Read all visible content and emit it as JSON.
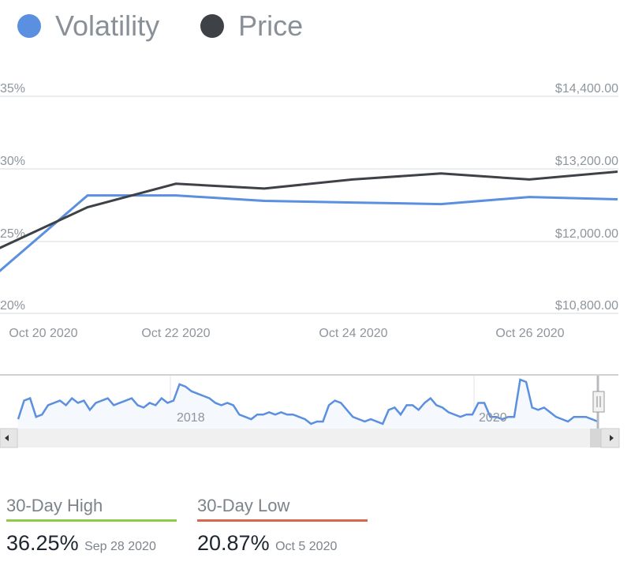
{
  "chart_data": {
    "type": "line",
    "legend": [
      {
        "name": "Volatility",
        "color": "#5b8fe0"
      },
      {
        "name": "Price",
        "color": "#3e4247"
      }
    ],
    "x": [
      "Oct 20 2020",
      "Oct 21 2020",
      "Oct 22 2020",
      "Oct 23 2020",
      "Oct 24 2020",
      "Oct 25 2020",
      "Oct 26 2020",
      "Oct 27 2020"
    ],
    "x_tick_labels": [
      "Oct 20 2020",
      "Oct 22 2020",
      "Oct 24 2020",
      "Oct 26 2020"
    ],
    "series": [
      {
        "name": "Volatility",
        "axis": "left",
        "values": [
          22.9,
          28.15,
          28.15,
          27.77,
          27.66,
          27.55,
          28.04,
          27.88
        ]
      },
      {
        "name": "Price",
        "axis": "right",
        "values": [
          11880,
          12560,
          12950,
          12870,
          13020,
          13120,
          13020,
          13150
        ]
      }
    ],
    "left_axis": {
      "ticks": [
        "35%",
        "30%",
        "25%",
        "20%"
      ],
      "range": [
        20,
        35
      ]
    },
    "right_axis": {
      "ticks": [
        "$14,400.00",
        "$13,200.00",
        "$12,000.00",
        "$10,800.00"
      ],
      "range": [
        10800,
        14400
      ]
    },
    "grid": true,
    "legend_position": "top-left",
    "navigator": {
      "labels": [
        "2018",
        "2020"
      ],
      "values": [
        18,
        26,
        27,
        19,
        20,
        24,
        25,
        26,
        24,
        27,
        25,
        26,
        22,
        25,
        26,
        27,
        24,
        25,
        26,
        27,
        24,
        23,
        25,
        24,
        27,
        25,
        26,
        33,
        32,
        30,
        29,
        28,
        27,
        25,
        24,
        25,
        24,
        20,
        19,
        18,
        20,
        20,
        21,
        20,
        21,
        20,
        20,
        19,
        18,
        16,
        17,
        17,
        24,
        26,
        25,
        22,
        19,
        18,
        17,
        18,
        17,
        16,
        22,
        23,
        20,
        24,
        24,
        22,
        25,
        27,
        24,
        23,
        21,
        20,
        19,
        20,
        20,
        25,
        25,
        19,
        19,
        18,
        19,
        19,
        35,
        34,
        23,
        22,
        23,
        21,
        19,
        18,
        17,
        19,
        19,
        19,
        18,
        17
      ],
      "window_fraction": 0.99
    }
  },
  "stats": {
    "high": {
      "label": "30-Day High",
      "value": "36.25%",
      "date": "Sep 28 2020",
      "color": "#8fca4a"
    },
    "low": {
      "label": "30-Day Low",
      "value": "20.87%",
      "date": "Oct 5 2020",
      "color": "#d9654f"
    }
  }
}
